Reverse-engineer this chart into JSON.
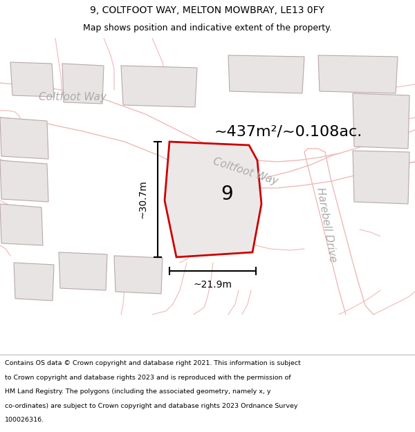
{
  "title_line1": "9, COLTFOOT WAY, MELTON MOWBRAY, LE13 0FY",
  "title_line2": "Map shows position and indicative extent of the property.",
  "area_text": "~437m²/~0.108ac.",
  "property_number": "9",
  "dim_horizontal": "~21.9m",
  "dim_vertical": "~30.7m",
  "label_coltfoot_left": "Coltfoot Way",
  "label_coltfoot_mid": "Coltfoot Way",
  "label_harebell": "Harebell Drive",
  "footer_lines": [
    "Contains OS data © Crown copyright and database right 2021. This information is subject",
    "to Crown copyright and database rights 2023 and is reproduced with the permission of",
    "HM Land Registry. The polygons (including the associated geometry, namely x, y",
    "co-ordinates) are subject to Crown copyright and database rights 2023 Ordnance Survey",
    "100026316."
  ],
  "map_bg": "#ffffff",
  "road_line_color": "#f0b8b8",
  "road_fill": "#f5e8e8",
  "building_fill": "#e8e4e4",
  "building_edge": "#b8a8a8",
  "property_fill": "#ede8e8",
  "property_edge": "#cc0000",
  "text_gray": "#aaaaaa",
  "dim_line_color": "#000000",
  "title_color": "#000000",
  "footer_color": "#000000",
  "bg_white": "#ffffff"
}
